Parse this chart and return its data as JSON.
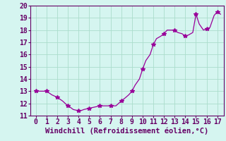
{
  "x": [
    0,
    0.5,
    1,
    1.5,
    2,
    2.5,
    3,
    3.2,
    3.5,
    4,
    4.2,
    4.5,
    5,
    5.5,
    6,
    6.5,
    7,
    7.5,
    8,
    8.3,
    8.7,
    9,
    9.3,
    9.7,
    10,
    10.3,
    10.7,
    11,
    11.3,
    11.7,
    12,
    12.3,
    12.7,
    13,
    13.3,
    13.7,
    14,
    14.3,
    14.7,
    15,
    15.3,
    15.7,
    16,
    16.3,
    16.7,
    17,
    17.3
  ],
  "y": [
    13.0,
    13.0,
    13.0,
    12.7,
    12.5,
    12.2,
    11.8,
    11.7,
    11.5,
    11.4,
    11.4,
    11.5,
    11.6,
    11.7,
    11.8,
    11.8,
    11.8,
    11.8,
    12.2,
    12.4,
    12.7,
    13.0,
    13.5,
    14.0,
    14.8,
    15.5,
    16.0,
    16.8,
    17.3,
    17.5,
    17.7,
    18.0,
    18.0,
    18.0,
    17.8,
    17.7,
    17.5,
    17.6,
    17.8,
    19.3,
    18.5,
    18.0,
    18.1,
    18.2,
    19.2,
    19.5,
    19.3
  ],
  "marker_x": [
    0,
    1,
    2,
    3,
    4,
    5,
    6,
    7,
    8,
    9,
    10,
    11,
    12,
    13,
    14,
    15,
    16,
    17
  ],
  "marker_y": [
    13.0,
    13.0,
    12.5,
    11.8,
    11.4,
    11.6,
    11.8,
    11.8,
    12.2,
    13.0,
    14.8,
    16.8,
    17.7,
    18.0,
    17.5,
    19.3,
    18.1,
    19.5
  ],
  "line_color": "#990099",
  "marker_color": "#990099",
  "bg_color": "#d5f5f0",
  "grid_color": "#aaddcc",
  "axis_color": "#660066",
  "xlabel": "Windchill (Refroidissement éolien,°C)",
  "xlim": [
    -0.5,
    17.6
  ],
  "ylim": [
    11,
    20
  ],
  "xticks": [
    0,
    1,
    2,
    3,
    4,
    5,
    6,
    7,
    8,
    9,
    10,
    11,
    12,
    13,
    14,
    15,
    16,
    17
  ],
  "yticks": [
    11,
    12,
    13,
    14,
    15,
    16,
    17,
    18,
    19,
    20
  ],
  "label_fontsize": 7.5,
  "tick_fontsize": 7
}
